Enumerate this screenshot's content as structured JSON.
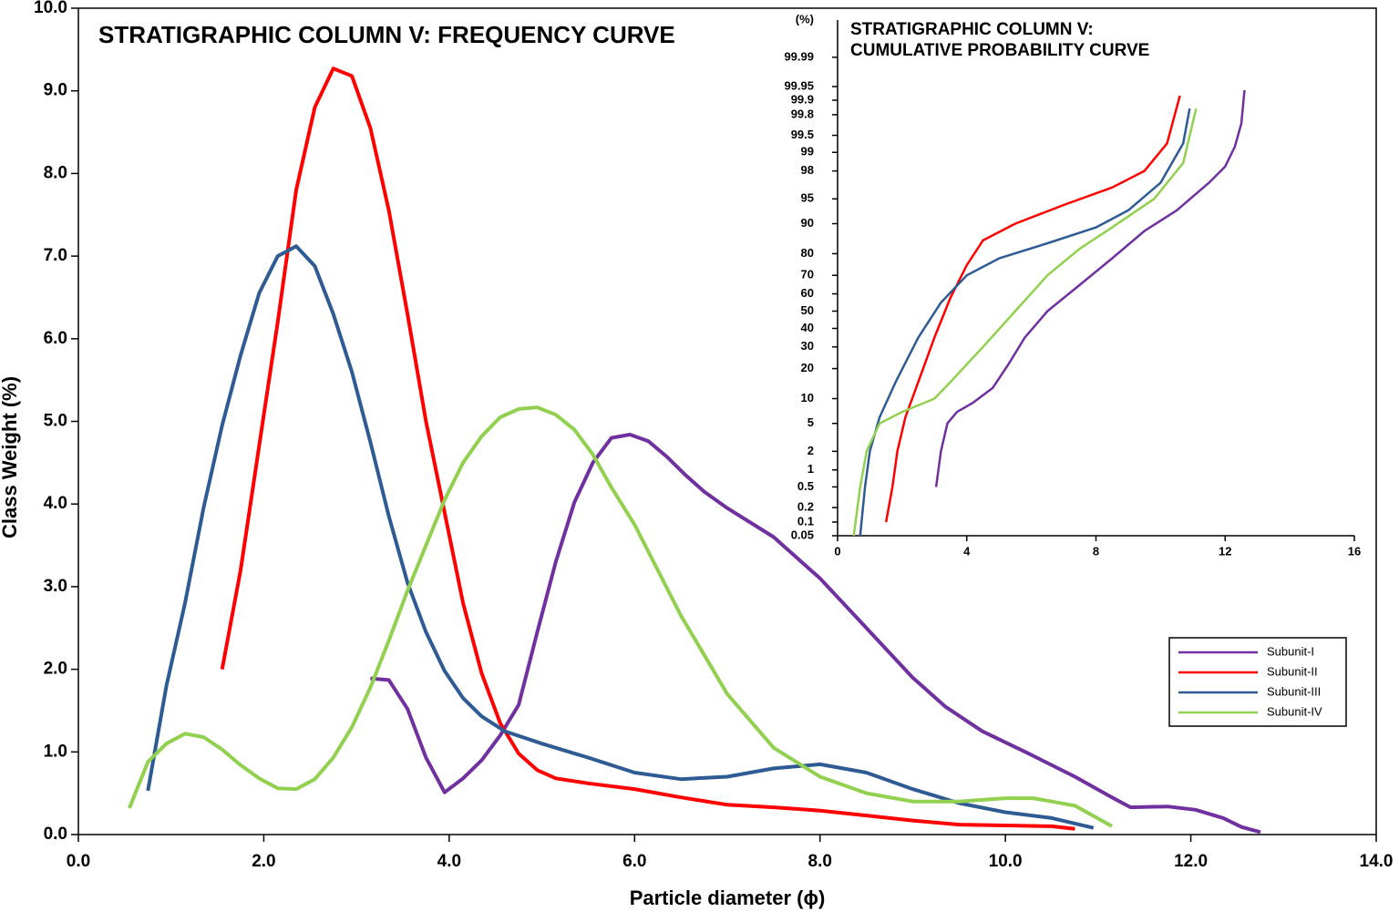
{
  "chart_data": [
    {
      "type": "line",
      "title": "STRATIGRAPHIC COLUMN V: FREQUENCY CURVE",
      "x_label": "Particle diameter (ϕ)",
      "y_label": "Class Weight (%)",
      "xlim": [
        0,
        14
      ],
      "ylim": [
        0,
        10
      ],
      "xticks": [
        {
          "value": 0,
          "label": "0.0"
        },
        {
          "value": 2,
          "label": "2.0"
        },
        {
          "value": 4,
          "label": "4.0"
        },
        {
          "value": 6,
          "label": "6.0"
        },
        {
          "value": 8,
          "label": "8.0"
        },
        {
          "value": 10,
          "label": "10.0"
        },
        {
          "value": 12,
          "label": "12.0"
        },
        {
          "value": 14,
          "label": "14.0"
        }
      ],
      "yticks": [
        {
          "value": 0,
          "label": "0.0"
        },
        {
          "value": 1,
          "label": "1.0"
        },
        {
          "value": 2,
          "label": "2.0"
        },
        {
          "value": 3,
          "label": "3.0"
        },
        {
          "value": 4,
          "label": "4.0"
        },
        {
          "value": 5,
          "label": "5.0"
        },
        {
          "value": 6,
          "label": "6.0"
        },
        {
          "value": 7,
          "label": "7.0"
        },
        {
          "value": 8,
          "label": "8.0"
        },
        {
          "value": 9,
          "label": "9.0"
        },
        {
          "value": 10,
          "label": "10.0"
        }
      ],
      "grid": false,
      "series": [
        {
          "name": "Subunit-I",
          "color": "#7030a0",
          "x": [
            3.15,
            3.35,
            3.55,
            3.75,
            3.95,
            4.15,
            4.35,
            4.55,
            4.75,
            4.95,
            5.15,
            5.35,
            5.55,
            5.75,
            5.95,
            6.15,
            6.35,
            6.55,
            6.75,
            7.0,
            7.5,
            8.0,
            8.5,
            9.0,
            9.35,
            9.75,
            10.25,
            10.75,
            11.15,
            11.35,
            11.75,
            12.05,
            12.35,
            12.55,
            12.75
          ],
          "values": [
            1.89,
            1.87,
            1.52,
            0.93,
            0.51,
            0.68,
            0.9,
            1.2,
            1.57,
            2.45,
            3.3,
            4.02,
            4.5,
            4.8,
            4.84,
            4.76,
            4.57,
            4.35,
            4.15,
            3.95,
            3.6,
            3.1,
            2.5,
            1.9,
            1.55,
            1.25,
            0.98,
            0.7,
            0.45,
            0.33,
            0.34,
            0.3,
            0.2,
            0.09,
            0.03
          ]
        },
        {
          "name": "Subunit-II",
          "color": "#ff0000",
          "x": [
            1.55,
            1.75,
            1.95,
            2.15,
            2.35,
            2.55,
            2.75,
            2.95,
            3.15,
            3.35,
            3.55,
            3.75,
            3.95,
            4.15,
            4.35,
            4.55,
            4.75,
            4.95,
            5.15,
            5.5,
            6.0,
            6.5,
            7.0,
            7.5,
            8.0,
            8.5,
            9.0,
            9.5,
            10.0,
            10.5,
            10.75
          ],
          "values": [
            2.0,
            3.2,
            4.7,
            6.2,
            7.8,
            8.8,
            9.27,
            9.18,
            8.55,
            7.55,
            6.3,
            5.0,
            3.9,
            2.8,
            1.95,
            1.35,
            0.98,
            0.78,
            0.68,
            0.62,
            0.55,
            0.45,
            0.36,
            0.33,
            0.29,
            0.23,
            0.17,
            0.12,
            0.11,
            0.1,
            0.07
          ]
        },
        {
          "name": "Subunit-III",
          "color": "#2e5b94",
          "x": [
            0.75,
            0.95,
            1.15,
            1.35,
            1.55,
            1.75,
            1.95,
            2.15,
            2.35,
            2.55,
            2.75,
            2.95,
            3.15,
            3.35,
            3.55,
            3.75,
            3.95,
            4.15,
            4.35,
            4.6,
            5.0,
            5.5,
            6.0,
            6.5,
            7.0,
            7.5,
            8.0,
            8.5,
            9.0,
            9.5,
            10.0,
            10.5,
            10.95
          ],
          "values": [
            0.53,
            1.8,
            2.8,
            3.95,
            4.95,
            5.8,
            6.55,
            7.0,
            7.12,
            6.88,
            6.3,
            5.6,
            4.75,
            3.85,
            3.05,
            2.45,
            1.98,
            1.65,
            1.43,
            1.25,
            1.1,
            0.93,
            0.75,
            0.67,
            0.7,
            0.8,
            0.85,
            0.75,
            0.55,
            0.38,
            0.27,
            0.2,
            0.08
          ]
        },
        {
          "name": "Subunit-IV",
          "color": "#92d050",
          "x": [
            0.55,
            0.75,
            0.95,
            1.15,
            1.35,
            1.55,
            1.75,
            1.95,
            2.15,
            2.35,
            2.55,
            2.75,
            2.95,
            3.15,
            3.35,
            3.55,
            3.75,
            3.95,
            4.15,
            4.35,
            4.55,
            4.75,
            4.95,
            5.15,
            5.35,
            5.55,
            5.75,
            6.0,
            6.5,
            7.0,
            7.5,
            8.0,
            8.5,
            9.0,
            9.5,
            10.0,
            10.3,
            10.75,
            11.15
          ],
          "values": [
            0.32,
            0.88,
            1.1,
            1.22,
            1.18,
            1.03,
            0.84,
            0.68,
            0.56,
            0.55,
            0.67,
            0.93,
            1.3,
            1.78,
            2.35,
            2.95,
            3.5,
            4.05,
            4.5,
            4.82,
            5.05,
            5.15,
            5.17,
            5.08,
            4.9,
            4.6,
            4.2,
            3.75,
            2.65,
            1.7,
            1.05,
            0.7,
            0.5,
            0.4,
            0.4,
            0.44,
            0.44,
            0.35,
            0.1
          ]
        }
      ]
    },
    {
      "type": "line",
      "title": [
        "STRATIGRAPHIC COLUMN V:",
        "CUMULATIVE PROBABILITY CURVE"
      ],
      "y_unit": "(%)",
      "y_scale": "probability",
      "xlim": [
        0,
        16
      ],
      "ylim": [
        0.05,
        99.999
      ],
      "xticks": [
        0,
        4,
        8,
        12,
        16
      ],
      "yticks": [
        0.05,
        0.1,
        0.2,
        0.5,
        1,
        2,
        5,
        10,
        20,
        30,
        40,
        50,
        60,
        70,
        80,
        90,
        95,
        98,
        99,
        99.5,
        99.8,
        99.9,
        99.95,
        99.99
      ],
      "series": [
        {
          "color": "#7030a0",
          "x": [
            3.05,
            3.2,
            3.4,
            3.7,
            4.2,
            4.8,
            5.3,
            5.8,
            6.5,
            7.5,
            8.5,
            9.5,
            10.5,
            11.5,
            12.0,
            12.3,
            12.5,
            12.6
          ],
          "values": [
            0.5,
            2,
            5,
            7,
            9,
            13,
            22,
            35,
            50,
            65,
            78,
            88,
            93,
            97,
            98.3,
            99.2,
            99.7,
            99.94
          ]
        },
        {
          "color": "#ff0000",
          "x": [
            1.5,
            1.7,
            1.85,
            2.1,
            2.5,
            3.0,
            3.5,
            4.0,
            4.5,
            5.5,
            7.0,
            8.5,
            9.5,
            10.2,
            10.6
          ],
          "values": [
            0.1,
            0.5,
            2,
            6,
            15,
            35,
            58,
            75,
            85,
            90,
            94,
            96.5,
            98,
            99.3,
            99.92
          ]
        },
        {
          "color": "#2e5b94",
          "x": [
            0.7,
            0.85,
            1.0,
            1.3,
            1.8,
            2.5,
            3.2,
            4.0,
            5.0,
            6.5,
            8.0,
            9.0,
            10.0,
            10.7,
            10.9
          ],
          "values": [
            0.05,
            0.5,
            2,
            6,
            15,
            35,
            55,
            70,
            78,
            84,
            89,
            93,
            97,
            99.3,
            99.85
          ]
        },
        {
          "color": "#92d050",
          "x": [
            0.5,
            0.7,
            0.9,
            1.3,
            2.0,
            3.0,
            3.5,
            4.5,
            5.5,
            6.5,
            7.5,
            8.5,
            9.8,
            10.7,
            11.1
          ],
          "values": [
            0.05,
            0.5,
            2,
            5,
            7,
            10,
            15,
            30,
            50,
            70,
            82,
            89,
            95,
            98.5,
            99.85
          ]
        }
      ]
    }
  ]
}
